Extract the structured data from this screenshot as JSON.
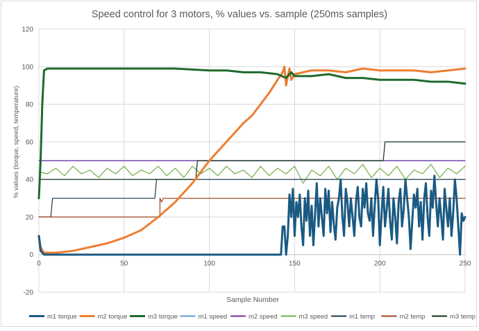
{
  "chart_data": {
    "type": "line",
    "title": "Speed control for 3 motors, % values vs. sample (250ms samples)",
    "xlabel": "Sample Number",
    "ylabel": "% values (torque, speed, temperature)",
    "xlim": [
      0,
      250
    ],
    "ylim": [
      -20,
      120
    ],
    "xticks": [
      0,
      50,
      100,
      150,
      200,
      250
    ],
    "yticks": [
      -20,
      0,
      20,
      40,
      60,
      80,
      100,
      120
    ],
    "grid": true,
    "legend_position": "bottom",
    "series": [
      {
        "name": "m1 torque",
        "color": "#1a5a82",
        "width": 3,
        "points": [
          [
            0,
            10
          ],
          [
            1,
            2
          ],
          [
            3,
            0
          ],
          [
            140,
            0
          ],
          [
            142,
            0
          ],
          [
            143,
            15
          ],
          [
            144,
            15
          ],
          [
            145,
            0
          ],
          [
            146,
            10
          ],
          [
            147,
            32
          ],
          [
            148,
            20
          ],
          [
            149,
            35
          ],
          [
            150,
            10
          ],
          [
            151,
            28
          ],
          [
            152,
            20
          ],
          [
            153,
            32
          ],
          [
            154,
            15
          ],
          [
            155,
            5
          ],
          [
            156,
            30
          ],
          [
            157,
            18
          ],
          [
            158,
            34
          ],
          [
            159,
            10
          ],
          [
            160,
            26
          ],
          [
            161,
            5
          ],
          [
            162,
            22
          ],
          [
            163,
            38
          ],
          [
            164,
            15
          ],
          [
            165,
            30
          ],
          [
            166,
            20
          ],
          [
            167,
            10
          ],
          [
            168,
            35
          ],
          [
            169,
            22
          ],
          [
            170,
            34
          ],
          [
            171,
            12
          ],
          [
            172,
            28
          ],
          [
            173,
            16
          ],
          [
            174,
            8
          ],
          [
            175,
            25
          ],
          [
            176,
            30
          ],
          [
            177,
            40
          ],
          [
            178,
            20
          ],
          [
            179,
            10
          ],
          [
            180,
            35
          ],
          [
            181,
            28
          ],
          [
            182,
            15
          ],
          [
            183,
            30
          ],
          [
            184,
            20
          ],
          [
            185,
            10
          ],
          [
            186,
            28
          ],
          [
            187,
            36
          ],
          [
            188,
            20
          ],
          [
            189,
            15
          ],
          [
            190,
            35
          ],
          [
            191,
            25
          ],
          [
            192,
            38
          ],
          [
            193,
            22
          ],
          [
            194,
            18
          ],
          [
            195,
            30
          ],
          [
            196,
            10
          ],
          [
            197,
            26
          ],
          [
            198,
            40
          ],
          [
            199,
            30
          ],
          [
            200,
            5
          ],
          [
            201,
            22
          ],
          [
            202,
            36
          ],
          [
            203,
            15
          ],
          [
            204,
            24
          ],
          [
            205,
            35
          ],
          [
            206,
            18
          ],
          [
            207,
            8
          ],
          [
            208,
            30
          ],
          [
            209,
            20
          ],
          [
            210,
            6
          ],
          [
            211,
            28
          ],
          [
            212,
            35
          ],
          [
            213,
            15
          ],
          [
            214,
            24
          ],
          [
            215,
            40
          ],
          [
            216,
            30
          ],
          [
            217,
            20
          ],
          [
            218,
            3
          ],
          [
            219,
            18
          ],
          [
            220,
            32
          ],
          [
            221,
            25
          ],
          [
            222,
            35
          ],
          [
            223,
            15
          ],
          [
            224,
            28
          ],
          [
            225,
            8
          ],
          [
            226,
            30
          ],
          [
            227,
            38
          ],
          [
            228,
            20
          ],
          [
            229,
            10
          ],
          [
            230,
            34
          ],
          [
            231,
            25
          ],
          [
            232,
            42
          ],
          [
            233,
            28
          ],
          [
            234,
            15
          ],
          [
            235,
            30
          ],
          [
            236,
            20
          ],
          [
            237,
            8
          ],
          [
            238,
            35
          ],
          [
            239,
            24
          ],
          [
            240,
            15
          ],
          [
            241,
            30
          ],
          [
            242,
            10
          ],
          [
            243,
            22
          ],
          [
            244,
            40
          ],
          [
            245,
            30
          ],
          [
            246,
            15
          ],
          [
            247,
            0
          ],
          [
            248,
            22
          ],
          [
            249,
            18
          ],
          [
            250,
            20
          ]
        ]
      },
      {
        "name": "m2 torque",
        "color": "#ed7d31",
        "width": 3,
        "points": [
          [
            0,
            10
          ],
          [
            1,
            4
          ],
          [
            3,
            1
          ],
          [
            10,
            1
          ],
          [
            20,
            2
          ],
          [
            30,
            4
          ],
          [
            40,
            6
          ],
          [
            50,
            9
          ],
          [
            60,
            13
          ],
          [
            70,
            20
          ],
          [
            80,
            28
          ],
          [
            90,
            38
          ],
          [
            100,
            50
          ],
          [
            110,
            60
          ],
          [
            120,
            70
          ],
          [
            125,
            74
          ],
          [
            130,
            80
          ],
          [
            135,
            86
          ],
          [
            140,
            93
          ],
          [
            143,
            97
          ],
          [
            144,
            100
          ],
          [
            145,
            90
          ],
          [
            146,
            95
          ],
          [
            147,
            99
          ],
          [
            148,
            93
          ],
          [
            150,
            96
          ],
          [
            155,
            97
          ],
          [
            160,
            98
          ],
          [
            170,
            98
          ],
          [
            180,
            97
          ],
          [
            190,
            99
          ],
          [
            200,
            98
          ],
          [
            210,
            98
          ],
          [
            220,
            98
          ],
          [
            230,
            97
          ],
          [
            240,
            98
          ],
          [
            250,
            99
          ]
        ]
      },
      {
        "name": "m3 torque",
        "color": "#1e6b2a",
        "width": 3,
        "points": [
          [
            0,
            30
          ],
          [
            1,
            50
          ],
          [
            2,
            80
          ],
          [
            3,
            98
          ],
          [
            5,
            99
          ],
          [
            20,
            99
          ],
          [
            40,
            99
          ],
          [
            60,
            99
          ],
          [
            80,
            99
          ],
          [
            100,
            98
          ],
          [
            110,
            98
          ],
          [
            120,
            97
          ],
          [
            130,
            97
          ],
          [
            140,
            96
          ],
          [
            145,
            94
          ],
          [
            148,
            97
          ],
          [
            150,
            95
          ],
          [
            160,
            95
          ],
          [
            170,
            96
          ],
          [
            180,
            94
          ],
          [
            190,
            94
          ],
          [
            200,
            93
          ],
          [
            210,
            93
          ],
          [
            220,
            93
          ],
          [
            230,
            92
          ],
          [
            240,
            92
          ],
          [
            250,
            91
          ]
        ]
      },
      {
        "name": "m1 speed",
        "color": "#5b9bd5",
        "width": 1.2,
        "points": [
          [
            0,
            50
          ],
          [
            250,
            50
          ]
        ]
      },
      {
        "name": "m2 speed",
        "color": "#7030a0",
        "width": 1.2,
        "points": [
          [
            0,
            50
          ],
          [
            50,
            50
          ],
          [
            100,
            50
          ],
          [
            150,
            50
          ],
          [
            200,
            50
          ],
          [
            250,
            50
          ]
        ]
      },
      {
        "name": "m3 speed",
        "color": "#70ad47",
        "width": 1.2,
        "points": [
          [
            0,
            44
          ],
          [
            5,
            43
          ],
          [
            10,
            46
          ],
          [
            15,
            42
          ],
          [
            20,
            47
          ],
          [
            25,
            43
          ],
          [
            30,
            45
          ],
          [
            35,
            41
          ],
          [
            40,
            46
          ],
          [
            45,
            43
          ],
          [
            50,
            47
          ],
          [
            55,
            42
          ],
          [
            60,
            45
          ],
          [
            65,
            43
          ],
          [
            70,
            47
          ],
          [
            75,
            42
          ],
          [
            80,
            46
          ],
          [
            85,
            41
          ],
          [
            90,
            47
          ],
          [
            95,
            43
          ],
          [
            100,
            46
          ],
          [
            105,
            42
          ],
          [
            110,
            47
          ],
          [
            115,
            43
          ],
          [
            120,
            45
          ],
          [
            125,
            41
          ],
          [
            130,
            47
          ],
          [
            135,
            42
          ],
          [
            140,
            46
          ],
          [
            145,
            43
          ],
          [
            150,
            47
          ],
          [
            155,
            38
          ],
          [
            160,
            45
          ],
          [
            165,
            42
          ],
          [
            170,
            47
          ],
          [
            175,
            40
          ],
          [
            180,
            46
          ],
          [
            185,
            43
          ],
          [
            190,
            48
          ],
          [
            195,
            41
          ],
          [
            200,
            46
          ],
          [
            205,
            42
          ],
          [
            210,
            47
          ],
          [
            215,
            40
          ],
          [
            220,
            45
          ],
          [
            225,
            43
          ],
          [
            230,
            48
          ],
          [
            235,
            41
          ],
          [
            240,
            46
          ],
          [
            245,
            43
          ],
          [
            250,
            47
          ]
        ]
      },
      {
        "name": "m1 temp",
        "color": "#1b3a4b",
        "width": 1.2,
        "points": [
          [
            0,
            20
          ],
          [
            7,
            20
          ],
          [
            8,
            30
          ],
          [
            68,
            30
          ],
          [
            69,
            40
          ],
          [
            250,
            40
          ]
        ]
      },
      {
        "name": "m2 temp",
        "color": "#a0401c",
        "width": 1.2,
        "points": [
          [
            0,
            20
          ],
          [
            71,
            20
          ],
          [
            71,
            30
          ],
          [
            72,
            28
          ],
          [
            73,
            30
          ],
          [
            250,
            30
          ]
        ]
      },
      {
        "name": "m3 temp",
        "color": "#0f2e15",
        "width": 1.2,
        "points": [
          [
            0,
            40
          ],
          [
            92,
            40
          ],
          [
            93,
            50
          ],
          [
            202,
            50
          ],
          [
            203,
            60
          ],
          [
            250,
            60
          ]
        ]
      }
    ]
  }
}
